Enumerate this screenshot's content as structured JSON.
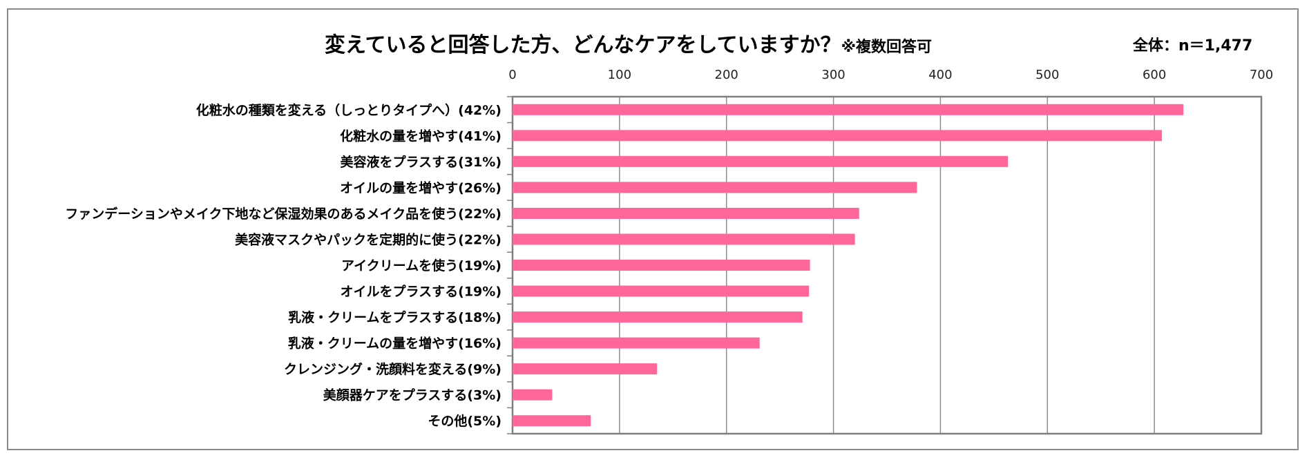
{
  "chart_data": {
    "type": "bar",
    "orientation": "horizontal",
    "title": "変えていると回答した方、どんなケアをしていますか？",
    "title_note": "※複数回答可",
    "total_label": "全体：n＝1,477",
    "xlim": [
      0,
      700
    ],
    "xticks": [
      "0",
      "100",
      "200",
      "300",
      "400",
      "500",
      "600",
      "700"
    ],
    "grid": true,
    "bar_color": "#ff6699",
    "categories": [
      "化粧水の種類を変える（しっとりタイプへ）(42%)",
      "化粧水の量を増やす(41%)",
      "美容液をプラスする(31%)",
      "オイルの量を増やす(26%)",
      "ファンデーションやメイク下地など保湿効果のあるメイク品を使う(22%)",
      "美容液マスクやパックを定期的に使う(22%)",
      "アイクリームを使う(19%)",
      "オイルをプラスする(19%)",
      "乳液・クリームをプラスする(18%)",
      "乳液・クリームの量を増やす(16%)",
      "クレンジング・洗顔料を変える(9%)",
      "美顔器ケアをプラスする(3%)",
      "その他(5%)"
    ],
    "values": [
      627,
      607,
      463,
      378,
      324,
      320,
      278,
      277,
      271,
      231,
      135,
      37,
      73
    ]
  }
}
